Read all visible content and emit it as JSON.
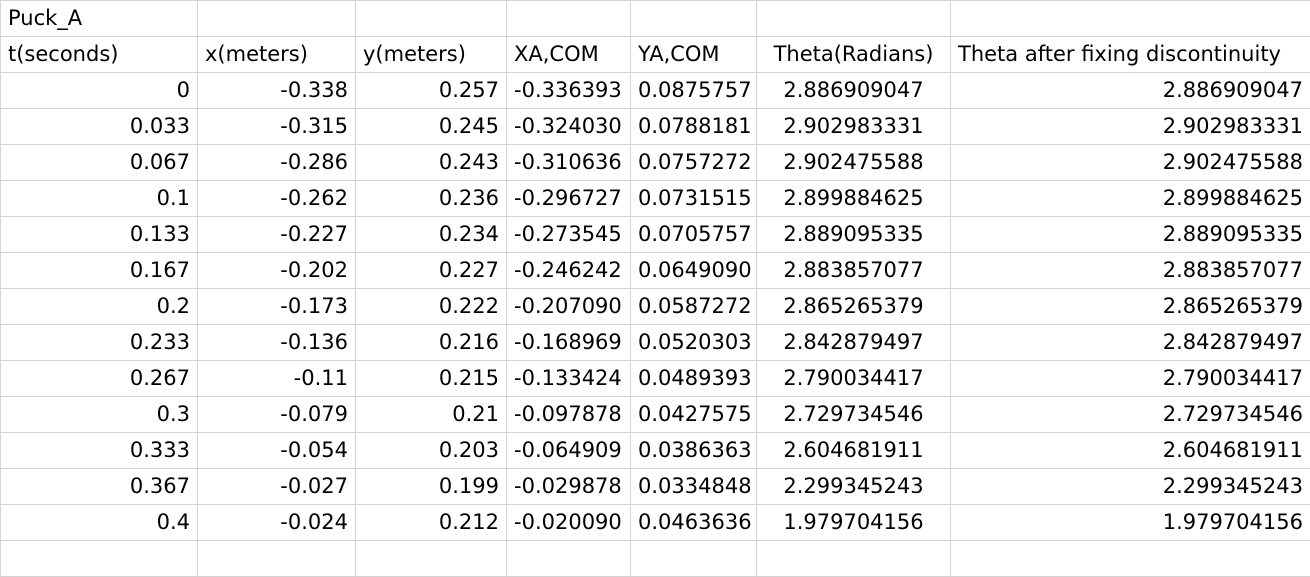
{
  "sheet": {
    "title": "Puck_A",
    "headers": [
      "t(seconds)",
      "x(meters)",
      "y(meters)",
      "XA,COM",
      "YA,COM",
      "Theta(Radians)",
      "Theta after fixing discontinuity"
    ],
    "rows": [
      [
        "0",
        "-0.338",
        "0.257",
        "-0.336393",
        "0.0875757",
        "2.886909047",
        "2.886909047"
      ],
      [
        "0.033",
        "-0.315",
        "0.245",
        "-0.324030",
        "0.0788181",
        "2.902983331",
        "2.902983331"
      ],
      [
        "0.067",
        "-0.286",
        "0.243",
        "-0.310636",
        "0.0757272",
        "2.902475588",
        "2.902475588"
      ],
      [
        "0.1",
        "-0.262",
        "0.236",
        "-0.296727",
        "0.0731515",
        "2.899884625",
        "2.899884625"
      ],
      [
        "0.133",
        "-0.227",
        "0.234",
        "-0.273545",
        "0.0705757",
        "2.889095335",
        "2.889095335"
      ],
      [
        "0.167",
        "-0.202",
        "0.227",
        "-0.246242",
        "0.0649090",
        "2.883857077",
        "2.883857077"
      ],
      [
        "0.2",
        "-0.173",
        "0.222",
        "-0.207090",
        "0.0587272",
        "2.865265379",
        "2.865265379"
      ],
      [
        "0.233",
        "-0.136",
        "0.216",
        "-0.168969",
        "0.0520303",
        "2.842879497",
        "2.842879497"
      ],
      [
        "0.267",
        "-0.11",
        "0.215",
        "-0.133424",
        "0.0489393",
        "2.790034417",
        "2.790034417"
      ],
      [
        "0.3",
        "-0.079",
        "0.21",
        "-0.097878",
        "0.0427575",
        "2.729734546",
        "2.729734546"
      ],
      [
        "0.333",
        "-0.054",
        "0.203",
        "-0.064909",
        "0.0386363",
        "2.604681911",
        "2.604681911"
      ],
      [
        "0.367",
        "-0.027",
        "0.199",
        "-0.029878",
        "0.0334848",
        "2.299345243",
        "2.299345243"
      ],
      [
        "0.4",
        "-0.024",
        "0.212",
        "-0.020090",
        "0.0463636",
        "1.979704156",
        "1.979704156"
      ]
    ]
  }
}
